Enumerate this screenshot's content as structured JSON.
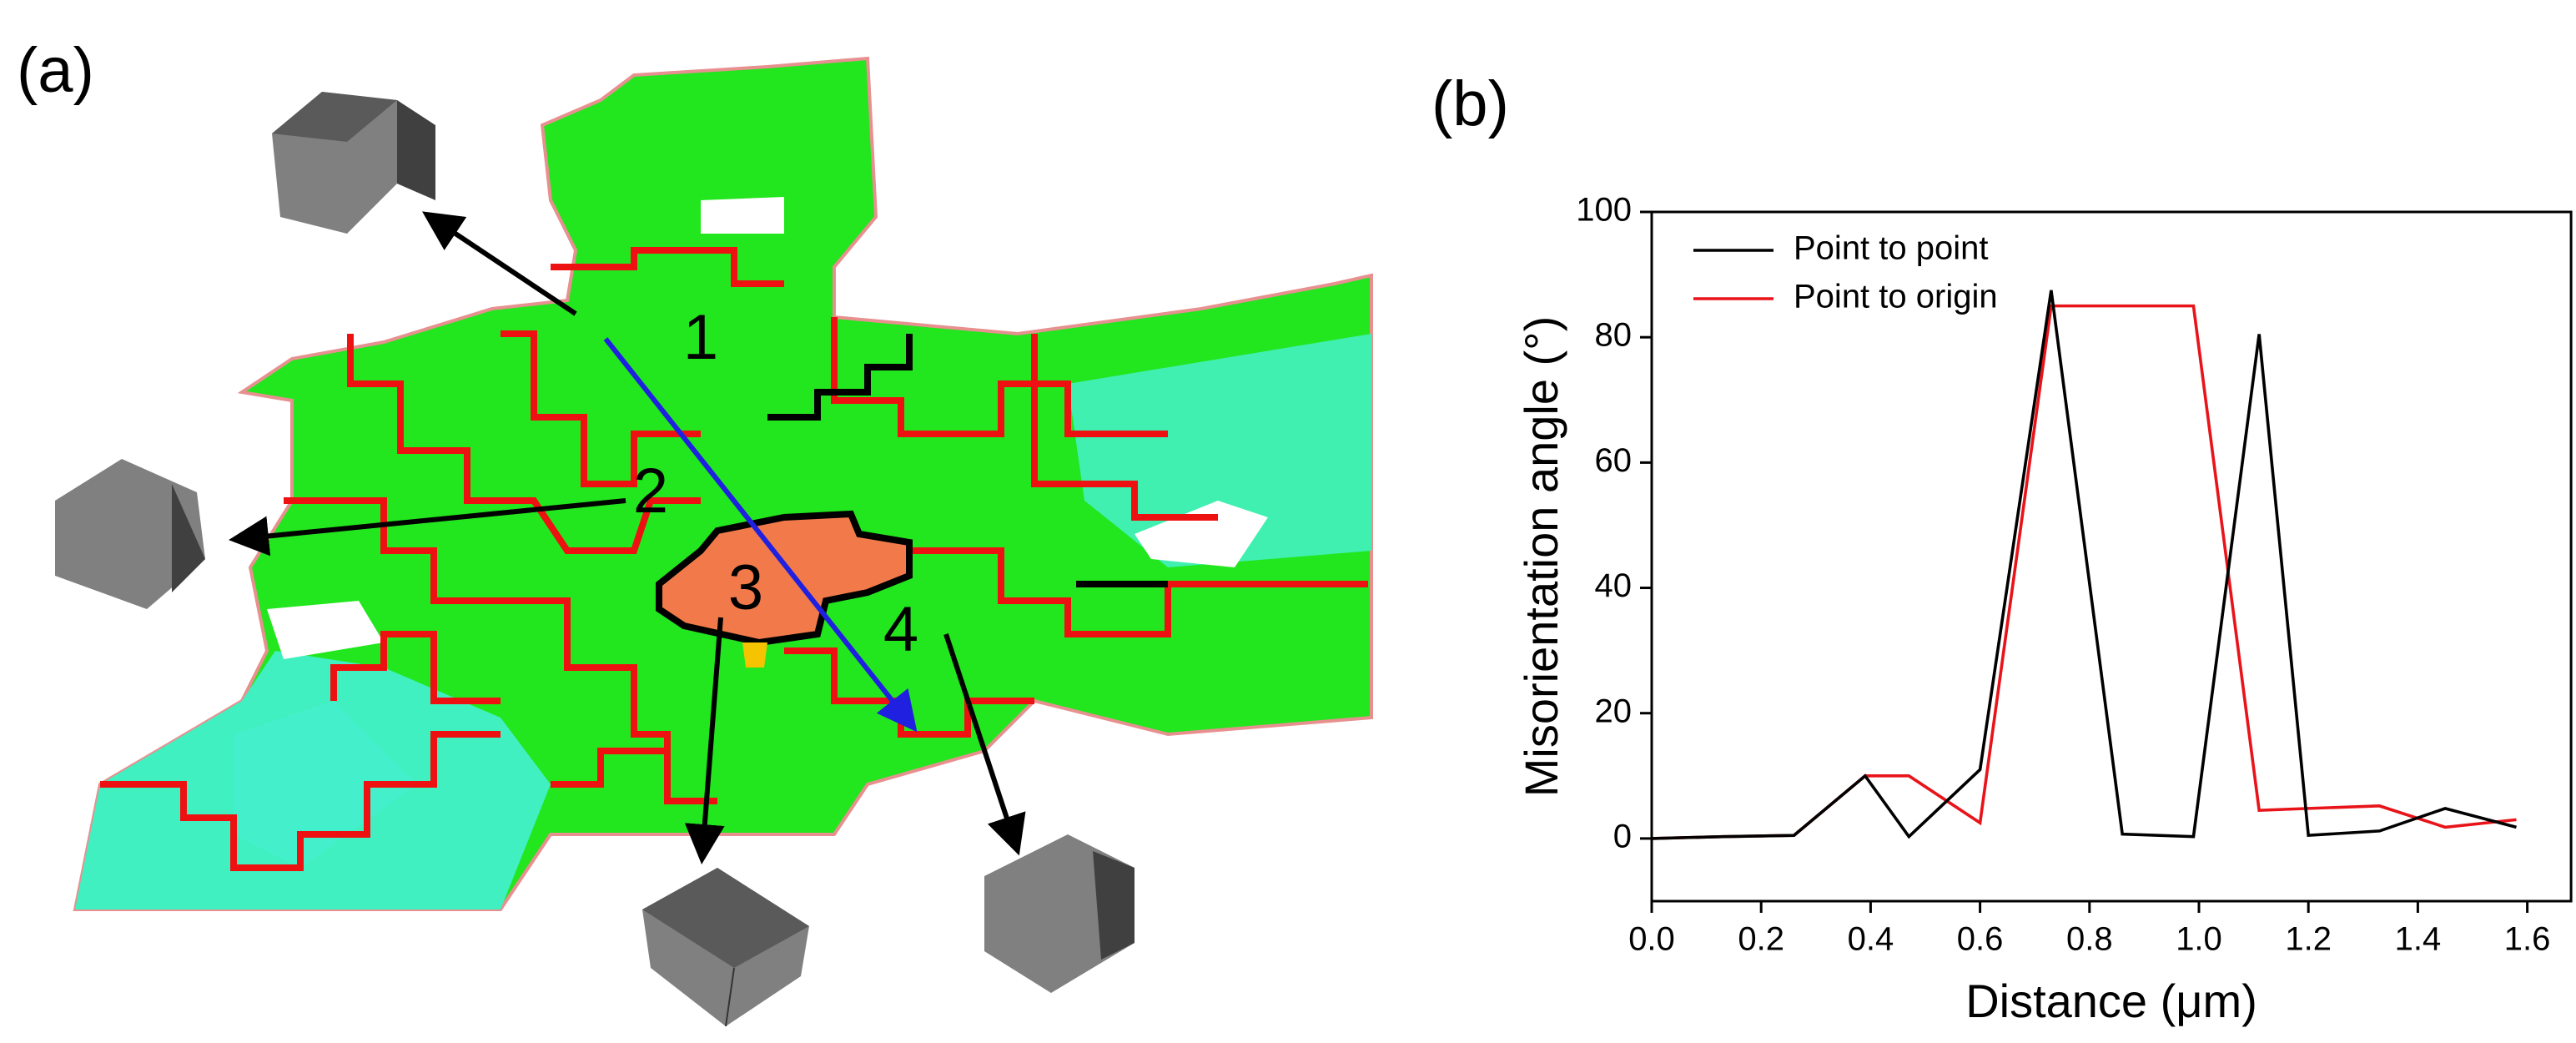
{
  "panel_labels": [
    "(a)",
    "(b)"
  ],
  "map_points": [
    "1",
    "2",
    "3",
    "4"
  ],
  "chart_data": {
    "type": "line",
    "x_label": "Distance (μm)",
    "y_label": "Misorientation angle (°)",
    "x": [
      0,
      0.13,
      0.26,
      0.39,
      0.47,
      0.6,
      0.73,
      0.86,
      0.99,
      1.11,
      1.2,
      1.33,
      1.45,
      1.58
    ],
    "series": [
      {
        "name": "Point to point",
        "color": "#000000",
        "values": [
          0,
          0.3,
          0.5,
          10,
          0.3,
          11,
          87.5,
          0.7,
          0.3,
          80.5,
          0.5,
          1.2,
          4.8,
          1.8
        ]
      },
      {
        "name": "Point to origin",
        "color": "#e8141a",
        "values": [
          0,
          0.3,
          0.5,
          10,
          10,
          2.5,
          85,
          85,
          85,
          4.5,
          4.8,
          5.2,
          1.8,
          3
        ]
      }
    ],
    "xlim": [
      0,
      1.68
    ],
    "ylim": [
      -10,
      100
    ],
    "xticks": [
      {
        "value": 0,
        "label": "0.0"
      },
      0.2,
      0.4,
      0.6,
      0.8,
      {
        "value": 1,
        "label": "1.0"
      },
      1.2,
      1.4,
      1.6
    ],
    "yticks": [
      0,
      20,
      40,
      60,
      80,
      100
    ],
    "legend": "upper left"
  }
}
